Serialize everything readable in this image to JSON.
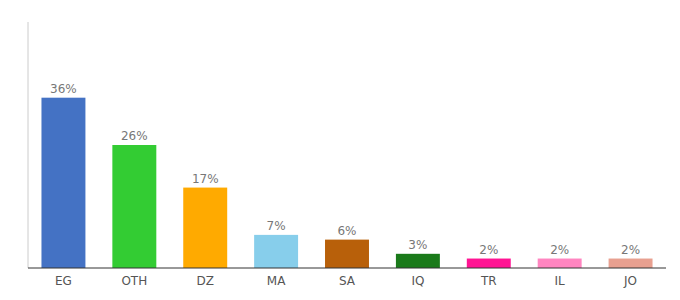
{
  "chart_data": {
    "type": "bar",
    "categories": [
      "EG",
      "OTH",
      "DZ",
      "MA",
      "SA",
      "IQ",
      "TR",
      "IL",
      "JO"
    ],
    "values": [
      36,
      26,
      17,
      7,
      6,
      3,
      2,
      2,
      2
    ],
    "value_labels": [
      "36%",
      "26%",
      "17%",
      "7%",
      "6%",
      "3%",
      "2%",
      "2%",
      "2%"
    ],
    "colors": [
      "#4472c4",
      "#33cc33",
      "#ffaa00",
      "#87ceeb",
      "#b8600a",
      "#1a7a1a",
      "#ff1493",
      "#ff85c0",
      "#e8a090"
    ],
    "ylim": [
      0,
      52
    ],
    "data_labels": true,
    "tick_labels": "x",
    "grid": false
  }
}
